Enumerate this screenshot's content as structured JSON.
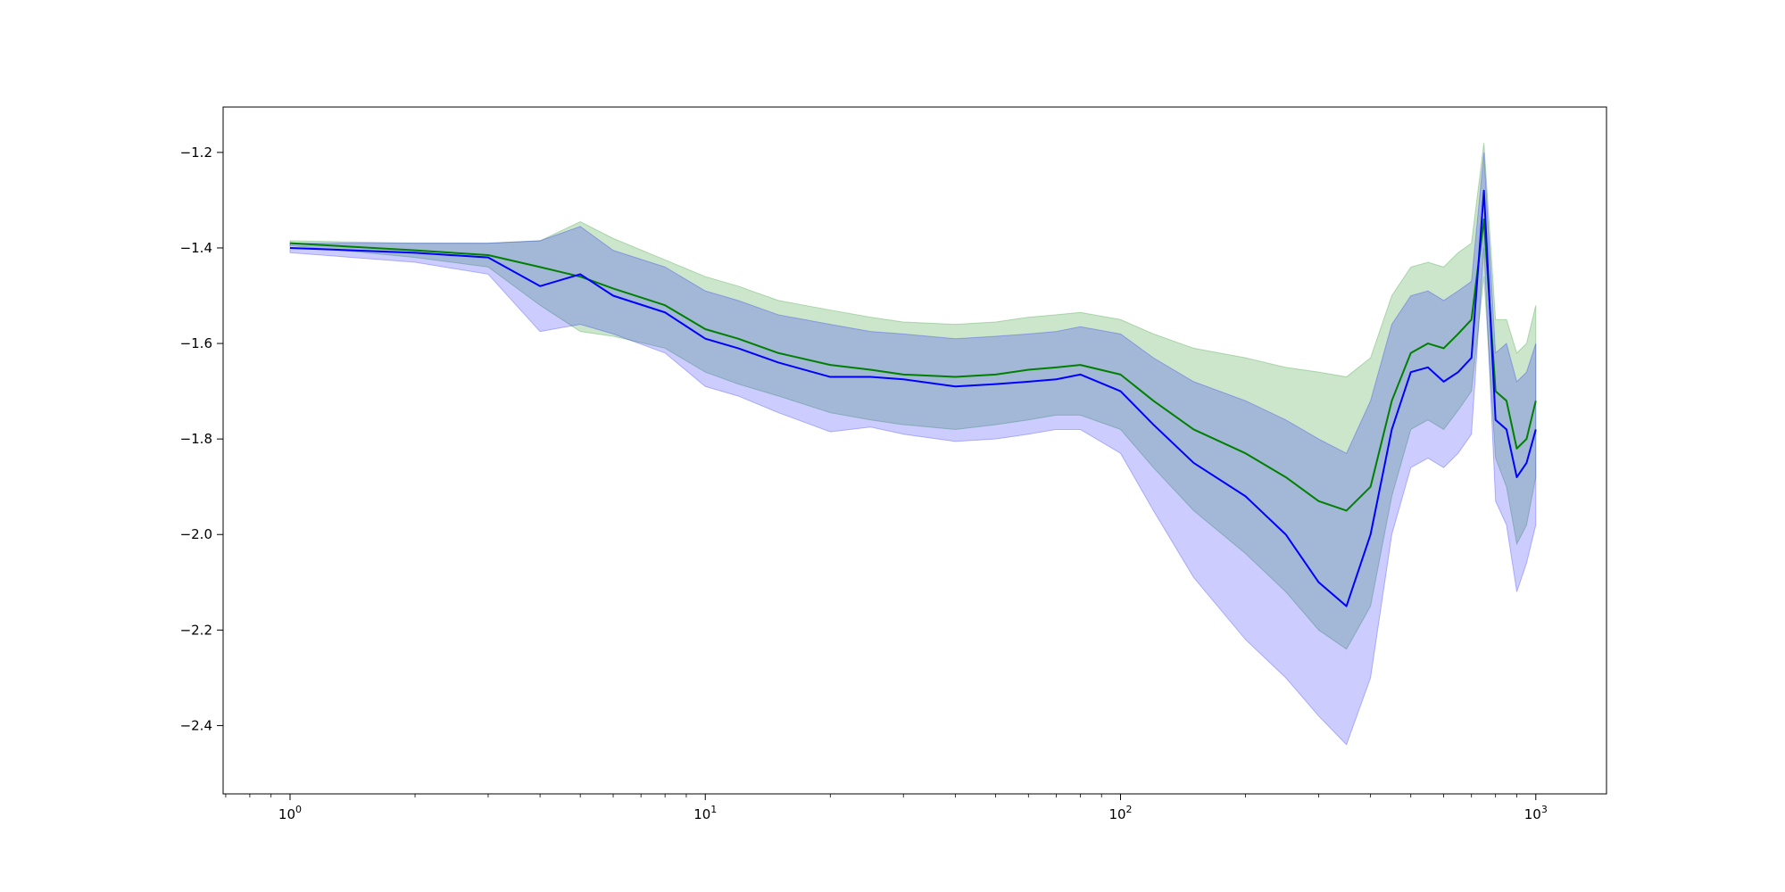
{
  "chart_data": {
    "type": "line",
    "title": "",
    "xlabel": "",
    "ylabel": "",
    "xscale": "log",
    "xlim": [
      0.69,
      1480
    ],
    "ylim": [
      -2.543,
      -1.105
    ],
    "grid": false,
    "legend": "none",
    "x_ticks": [
      {
        "value": 1,
        "label": "10^0"
      },
      {
        "value": 10,
        "label": "10^1"
      },
      {
        "value": 100,
        "label": "10^2"
      },
      {
        "value": 1000,
        "label": "10^3"
      }
    ],
    "y_ticks": [
      {
        "value": -1.2,
        "label": "−1.2"
      },
      {
        "value": -1.4,
        "label": "−1.4"
      },
      {
        "value": -1.6,
        "label": "−1.6"
      },
      {
        "value": -1.8,
        "label": "−1.8"
      },
      {
        "value": -2.0,
        "label": "−2.0"
      },
      {
        "value": -2.2,
        "label": "−2.2"
      },
      {
        "value": -2.4,
        "label": "−2.4"
      }
    ],
    "series": [
      {
        "color": "#008000",
        "band_color": "#008000",
        "band_opacity": 0.2,
        "x": [
          1,
          2,
          3,
          4,
          5,
          6,
          8,
          10,
          12,
          15,
          20,
          25,
          30,
          40,
          50,
          60,
          70,
          80,
          100,
          120,
          150,
          200,
          250,
          300,
          350,
          400,
          450,
          500,
          550,
          600,
          650,
          700,
          750,
          800,
          850,
          900,
          950,
          1000
        ],
        "y": [
          -1.39,
          -1.405,
          -1.415,
          -1.44,
          -1.46,
          -1.485,
          -1.52,
          -1.57,
          -1.59,
          -1.62,
          -1.645,
          -1.655,
          -1.665,
          -1.67,
          -1.665,
          -1.655,
          -1.65,
          -1.645,
          -1.665,
          -1.72,
          -1.78,
          -1.83,
          -1.88,
          -1.93,
          -1.95,
          -1.9,
          -1.72,
          -1.62,
          -1.6,
          -1.61,
          -1.58,
          -1.55,
          -1.34,
          -1.7,
          -1.72,
          -1.82,
          -1.8,
          -1.72
        ],
        "lower": [
          -1.395,
          -1.42,
          -1.44,
          -1.52,
          -1.575,
          -1.585,
          -1.61,
          -1.66,
          -1.685,
          -1.71,
          -1.745,
          -1.76,
          -1.77,
          -1.78,
          -1.77,
          -1.76,
          -1.75,
          -1.75,
          -1.78,
          -1.86,
          -1.95,
          -2.04,
          -2.12,
          -2.2,
          -2.24,
          -2.15,
          -1.92,
          -1.78,
          -1.76,
          -1.78,
          -1.74,
          -1.7,
          -1.46,
          -1.84,
          -1.9,
          -2.02,
          -1.98,
          -1.88
        ],
        "upper": [
          -1.385,
          -1.39,
          -1.39,
          -1.385,
          -1.345,
          -1.38,
          -1.425,
          -1.46,
          -1.48,
          -1.51,
          -1.53,
          -1.545,
          -1.555,
          -1.56,
          -1.555,
          -1.545,
          -1.54,
          -1.535,
          -1.55,
          -1.58,
          -1.61,
          -1.63,
          -1.65,
          -1.66,
          -1.67,
          -1.63,
          -1.5,
          -1.44,
          -1.43,
          -1.44,
          -1.41,
          -1.39,
          -1.18,
          -1.55,
          -1.55,
          -1.62,
          -1.6,
          -1.52
        ]
      },
      {
        "color": "#0000ff",
        "band_color": "#0000ff",
        "band_opacity": 0.2,
        "x": [
          1,
          2,
          3,
          4,
          5,
          6,
          8,
          10,
          12,
          15,
          20,
          25,
          30,
          40,
          50,
          60,
          70,
          80,
          100,
          120,
          150,
          200,
          250,
          300,
          350,
          400,
          450,
          500,
          550,
          600,
          650,
          700,
          750,
          800,
          850,
          900,
          950,
          1000
        ],
        "y": [
          -1.4,
          -1.41,
          -1.42,
          -1.48,
          -1.455,
          -1.5,
          -1.535,
          -1.59,
          -1.61,
          -1.64,
          -1.67,
          -1.67,
          -1.675,
          -1.69,
          -1.685,
          -1.68,
          -1.675,
          -1.665,
          -1.7,
          -1.77,
          -1.85,
          -1.92,
          -2.0,
          -2.1,
          -2.15,
          -2.0,
          -1.78,
          -1.66,
          -1.65,
          -1.68,
          -1.66,
          -1.63,
          -1.28,
          -1.76,
          -1.78,
          -1.88,
          -1.85,
          -1.78
        ],
        "lower": [
          -1.41,
          -1.43,
          -1.455,
          -1.575,
          -1.56,
          -1.58,
          -1.62,
          -1.69,
          -1.71,
          -1.745,
          -1.785,
          -1.775,
          -1.79,
          -1.805,
          -1.8,
          -1.79,
          -1.78,
          -1.78,
          -1.83,
          -1.95,
          -2.09,
          -2.22,
          -2.3,
          -2.38,
          -2.44,
          -2.3,
          -2.0,
          -1.86,
          -1.84,
          -1.86,
          -1.83,
          -1.79,
          -1.4,
          -1.93,
          -1.98,
          -2.12,
          -2.06,
          -1.98
        ],
        "upper": [
          -1.39,
          -1.39,
          -1.39,
          -1.385,
          -1.355,
          -1.405,
          -1.44,
          -1.49,
          -1.51,
          -1.54,
          -1.56,
          -1.575,
          -1.58,
          -1.59,
          -1.585,
          -1.58,
          -1.575,
          -1.565,
          -1.58,
          -1.63,
          -1.68,
          -1.72,
          -1.76,
          -1.8,
          -1.83,
          -1.72,
          -1.56,
          -1.5,
          -1.49,
          -1.51,
          -1.49,
          -1.47,
          -1.2,
          -1.62,
          -1.6,
          -1.68,
          -1.66,
          -1.6
        ]
      }
    ]
  }
}
